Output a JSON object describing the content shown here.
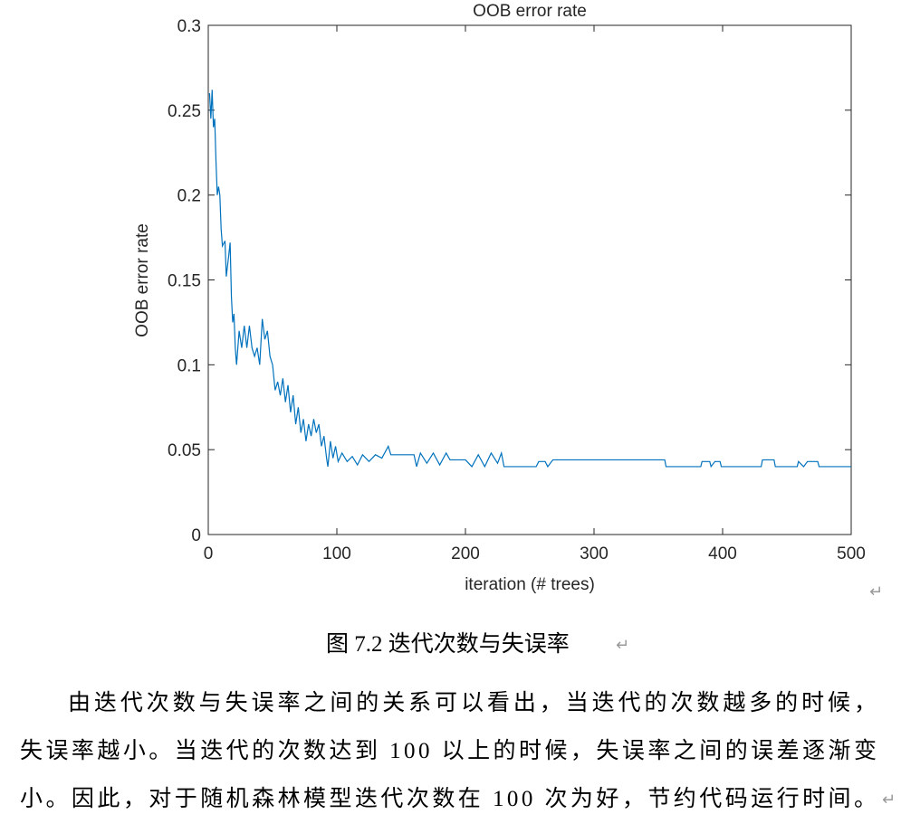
{
  "chart_data": {
    "type": "line",
    "title": "OOB error rate",
    "xlabel": "iteration (# trees)",
    "ylabel": "OOB error rate",
    "xlim": [
      0,
      500
    ],
    "ylim": [
      0,
      0.3
    ],
    "xticks": [
      0,
      100,
      200,
      300,
      400,
      500
    ],
    "yticks": [
      0,
      0.05,
      0.1,
      0.15,
      0.2,
      0.25,
      0.3
    ],
    "series": [
      {
        "color": "#0072bd",
        "x": [
          1,
          2,
          3,
          4,
          5,
          6,
          7,
          8,
          9,
          10,
          11,
          13,
          14,
          16,
          17,
          18,
          19,
          20,
          21,
          22,
          24,
          26,
          28,
          30,
          32,
          34,
          36,
          38,
          40,
          42,
          44,
          46,
          48,
          50,
          52,
          54,
          56,
          58,
          60,
          62,
          64,
          66,
          68,
          70,
          72,
          74,
          76,
          78,
          80,
          82,
          84,
          86,
          88,
          90,
          92,
          93,
          95,
          97,
          99,
          101,
          104,
          108,
          112,
          116,
          120,
          125,
          130,
          135,
          140,
          142,
          150,
          160,
          162,
          165,
          170,
          175,
          180,
          185,
          188,
          200,
          205,
          210,
          215,
          220,
          225,
          228,
          230,
          255,
          257,
          262,
          264,
          268,
          355,
          356,
          383,
          384,
          390,
          391,
          394,
          398,
          399,
          430,
          431,
          440,
          441,
          458,
          459,
          463,
          466,
          474,
          475,
          500
        ],
        "values": [
          0.26,
          0.245,
          0.262,
          0.24,
          0.245,
          0.22,
          0.2,
          0.205,
          0.2,
          0.18,
          0.17,
          0.173,
          0.152,
          0.165,
          0.172,
          0.14,
          0.125,
          0.13,
          0.11,
          0.1,
          0.12,
          0.11,
          0.123,
          0.11,
          0.123,
          0.11,
          0.105,
          0.11,
          0.1,
          0.127,
          0.115,
          0.12,
          0.105,
          0.1,
          0.085,
          0.09,
          0.082,
          0.092,
          0.078,
          0.088,
          0.072,
          0.082,
          0.065,
          0.075,
          0.06,
          0.068,
          0.055,
          0.065,
          0.058,
          0.068,
          0.06,
          0.065,
          0.052,
          0.058,
          0.045,
          0.04,
          0.055,
          0.045,
          0.052,
          0.043,
          0.048,
          0.043,
          0.046,
          0.041,
          0.047,
          0.043,
          0.047,
          0.045,
          0.052,
          0.047,
          0.047,
          0.047,
          0.04,
          0.048,
          0.042,
          0.048,
          0.041,
          0.048,
          0.044,
          0.044,
          0.04,
          0.047,
          0.04,
          0.048,
          0.042,
          0.048,
          0.04,
          0.04,
          0.043,
          0.043,
          0.04,
          0.044,
          0.044,
          0.04,
          0.04,
          0.043,
          0.043,
          0.04,
          0.043,
          0.043,
          0.04,
          0.04,
          0.044,
          0.044,
          0.04,
          0.04,
          0.043,
          0.04,
          0.043,
          0.043,
          0.04,
          0.04
        ]
      }
    ]
  },
  "document": {
    "paragraph_mark": "↵",
    "caption": "图 7.2 迭代次数与失误率",
    "paragraph_lines": [
      "由迭代次数与失误率之间的关系可以看出，当迭代的次数越多的时候，",
      "失误率越小。当迭代的次数达到 100 以上的时候，失误率之间的误差逐渐变",
      "小。因此，对于随机森林模型迭代次数在 100 次为好，节约代码运行时间。"
    ]
  }
}
